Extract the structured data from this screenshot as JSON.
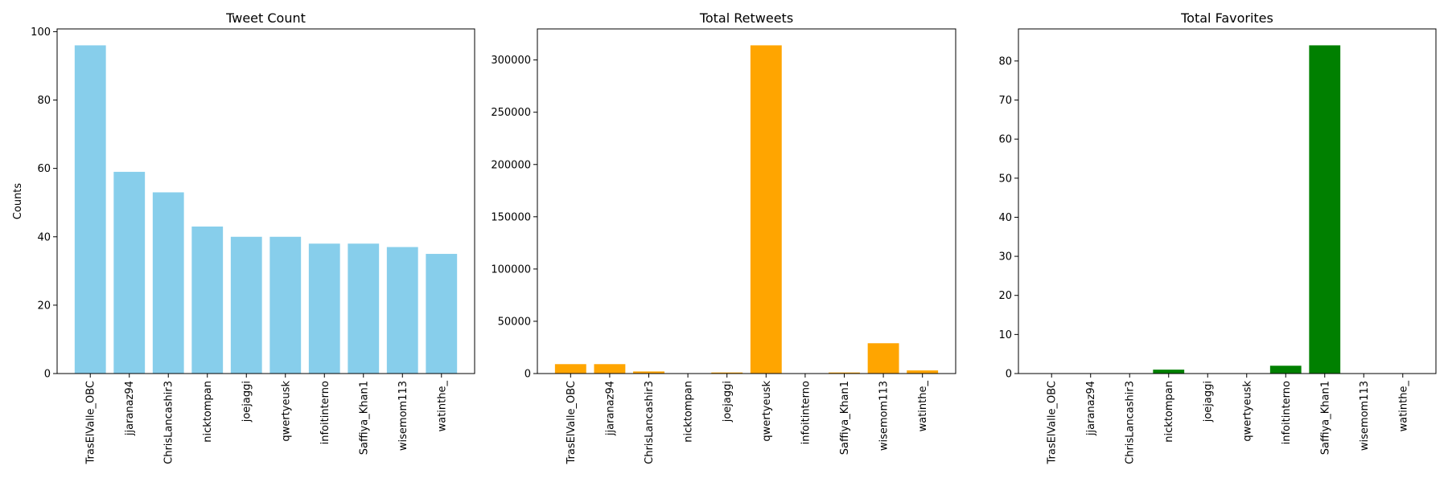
{
  "chart_data": [
    {
      "type": "bar",
      "title": "Tweet Count",
      "ylabel": "Counts",
      "xlabel": "",
      "color": "#87CEEB",
      "categories": [
        "TrasElValle_OBC",
        "jjaranaz94",
        "ChrisLancashir3",
        "nicktompan",
        "joejaggi",
        "qwertyeusk",
        "infoitinterno",
        "Saffiya_Khan1",
        "wisemom113",
        "watinthe_"
      ],
      "values": [
        96,
        59,
        53,
        43,
        40,
        40,
        38,
        38,
        37,
        35
      ],
      "ylim": [
        0,
        100.8
      ],
      "yticks": [
        0,
        20,
        40,
        60,
        80,
        100
      ],
      "grid": false
    },
    {
      "type": "bar",
      "title": "Total Retweets",
      "ylabel": "",
      "xlabel": "",
      "color": "#FFA500",
      "categories": [
        "TrasElValle_OBC",
        "jjaranaz94",
        "ChrisLancashir3",
        "nicktompan",
        "joejaggi",
        "qwertyeusk",
        "infoitinterno",
        "Saffiya_Khan1",
        "wisemom113",
        "watinthe_"
      ],
      "values": [
        9000,
        9000,
        2000,
        0,
        1000,
        314000,
        0,
        1000,
        29000,
        3000
      ],
      "ylim": [
        0,
        329700
      ],
      "yticks": [
        0,
        50000,
        100000,
        150000,
        200000,
        250000,
        300000
      ],
      "grid": false
    },
    {
      "type": "bar",
      "title": "Total Favorites",
      "ylabel": "",
      "xlabel": "",
      "color": "#008000",
      "categories": [
        "TrasElValle_OBC",
        "jjaranaz94",
        "ChrisLancashir3",
        "nicktompan",
        "joejaggi",
        "qwertyeusk",
        "infoitinterno",
        "Saffiya_Khan1",
        "wisemom113",
        "watinthe_"
      ],
      "values": [
        0,
        0,
        0,
        1,
        0,
        0,
        2,
        84,
        0,
        0
      ],
      "ylim": [
        0,
        88.2
      ],
      "yticks": [
        0,
        10,
        20,
        30,
        40,
        50,
        60,
        70,
        80
      ],
      "grid": false
    }
  ]
}
